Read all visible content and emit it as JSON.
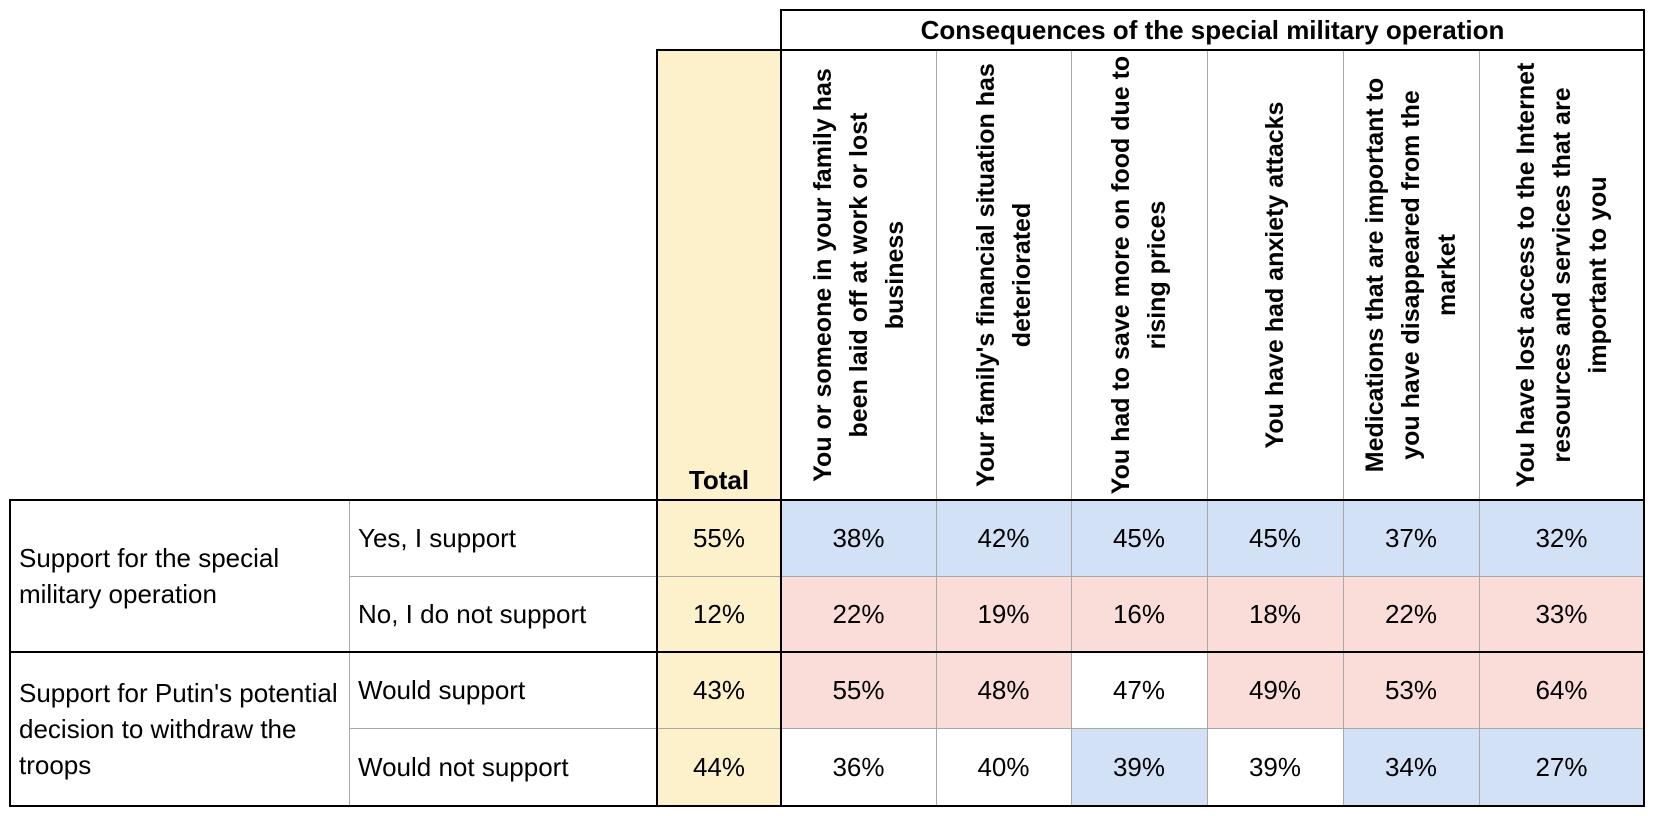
{
  "chart_data": {
    "type": "table",
    "group_title": "Consequences of the special military operation",
    "total_label": "Total",
    "columns": [
      "You or someone in your family has been laid off at work or lost business",
      "Your family's financial situation has deteriorated",
      "You had to save more on food due to rising prices",
      "You have had anxiety attacks",
      "Medications that are important to you have disappeared from the market",
      "You have lost access to the Internet resources and services that are important to you"
    ],
    "groups": [
      {
        "label": "Support for the special military operation",
        "rows": [
          {
            "label": "Yes, I support",
            "total": "55%",
            "values": [
              "38%",
              "42%",
              "45%",
              "45%",
              "37%",
              "32%"
            ],
            "shading": [
              "blue",
              "blue",
              "blue",
              "blue",
              "blue",
              "blue"
            ]
          },
          {
            "label": "No, I do not support",
            "total": "12%",
            "values": [
              "22%",
              "19%",
              "16%",
              "18%",
              "22%",
              "33%"
            ],
            "shading": [
              "red",
              "red",
              "red",
              "red",
              "red",
              "red"
            ]
          }
        ]
      },
      {
        "label": "Support for Putin's potential decision to withdraw the troops",
        "rows": [
          {
            "label": "Would support",
            "total": "43%",
            "values": [
              "55%",
              "48%",
              "47%",
              "49%",
              "53%",
              "64%"
            ],
            "shading": [
              "red",
              "red",
              "white",
              "red",
              "red",
              "red"
            ]
          },
          {
            "label": "Would not support",
            "total": "44%",
            "values": [
              "36%",
              "40%",
              "39%",
              "39%",
              "34%",
              "27%"
            ],
            "shading": [
              "white",
              "white",
              "blue",
              "white",
              "blue",
              "blue"
            ]
          }
        ]
      }
    ],
    "colors": {
      "blue": "#d3e1f7",
      "red": "#fadcd8",
      "white": "#ffffff",
      "total": "#fdf1cc"
    }
  }
}
